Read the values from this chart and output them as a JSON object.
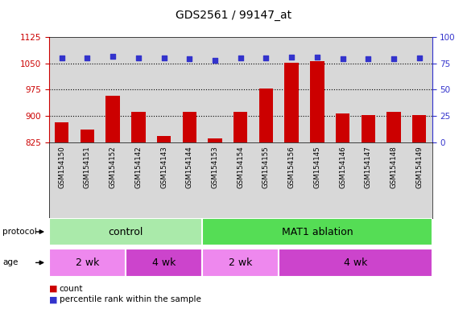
{
  "title": "GDS2561 / 99147_at",
  "samples": [
    "GSM154150",
    "GSM154151",
    "GSM154152",
    "GSM154142",
    "GSM154143",
    "GSM154144",
    "GSM154153",
    "GSM154154",
    "GSM154155",
    "GSM154156",
    "GSM154145",
    "GSM154146",
    "GSM154147",
    "GSM154148",
    "GSM154149"
  ],
  "counts": [
    882,
    862,
    957,
    912,
    843,
    912,
    836,
    912,
    978,
    1052,
    1057,
    908,
    902,
    912,
    902
  ],
  "percentiles": [
    80,
    80,
    82,
    80,
    80,
    79,
    78,
    80,
    80,
    81,
    81,
    79,
    79,
    79,
    80
  ],
  "bar_color": "#cc0000",
  "dot_color": "#3333cc",
  "ylim_left": [
    825,
    1125
  ],
  "yticks_left": [
    825,
    900,
    975,
    1050,
    1125
  ],
  "ylim_right": [
    0,
    100
  ],
  "yticks_right": [
    0,
    25,
    50,
    75,
    100
  ],
  "protocol_labels": [
    {
      "label": "control",
      "start": 0,
      "end": 6,
      "color": "#aaeaaa"
    },
    {
      "label": "MAT1 ablation",
      "start": 6,
      "end": 15,
      "color": "#55dd55"
    }
  ],
  "age_labels": [
    {
      "label": "2 wk",
      "start": 0,
      "end": 3,
      "color": "#ee88ee"
    },
    {
      "label": "4 wk",
      "start": 3,
      "end": 6,
      "color": "#cc44cc"
    },
    {
      "label": "2 wk",
      "start": 6,
      "end": 9,
      "color": "#ee88ee"
    },
    {
      "label": "4 wk",
      "start": 9,
      "end": 15,
      "color": "#cc44cc"
    }
  ],
  "legend_count_color": "#cc0000",
  "legend_dot_color": "#3333cc",
  "plot_bg_color": "#d8d8d8",
  "tick_fontsize": 7.5,
  "label_fontsize": 9,
  "title_fontsize": 10
}
